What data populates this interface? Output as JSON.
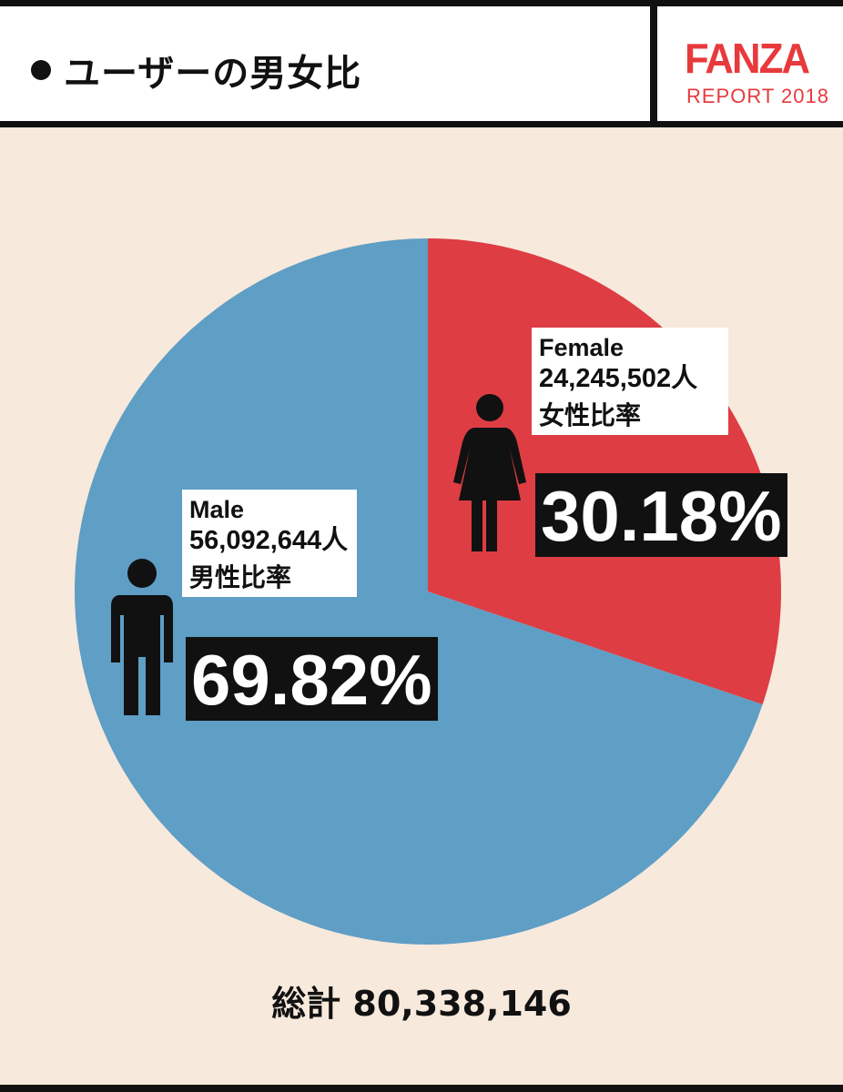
{
  "header": {
    "title": "ユーザーの男女比",
    "brand": "FANZA",
    "brand_sub": "REPORT 2018"
  },
  "colors": {
    "male": "#5f9ec5",
    "female": "#dd3d43",
    "background": "#f7e9dc",
    "brand": "#e8393c"
  },
  "chart_data": {
    "type": "pie",
    "series": [
      {
        "name": "Female",
        "count": "24,245,502人",
        "label_jp": "女性比率",
        "percent": "30.18%",
        "value": 30.18
      },
      {
        "name": "Male",
        "count": "56,092,644人",
        "label_jp": "男性比率",
        "percent": "69.82%",
        "value": 69.82
      }
    ],
    "total_label": "総計 80,338,146"
  },
  "icons": {
    "female": "female-person-icon",
    "male": "male-person-icon"
  }
}
